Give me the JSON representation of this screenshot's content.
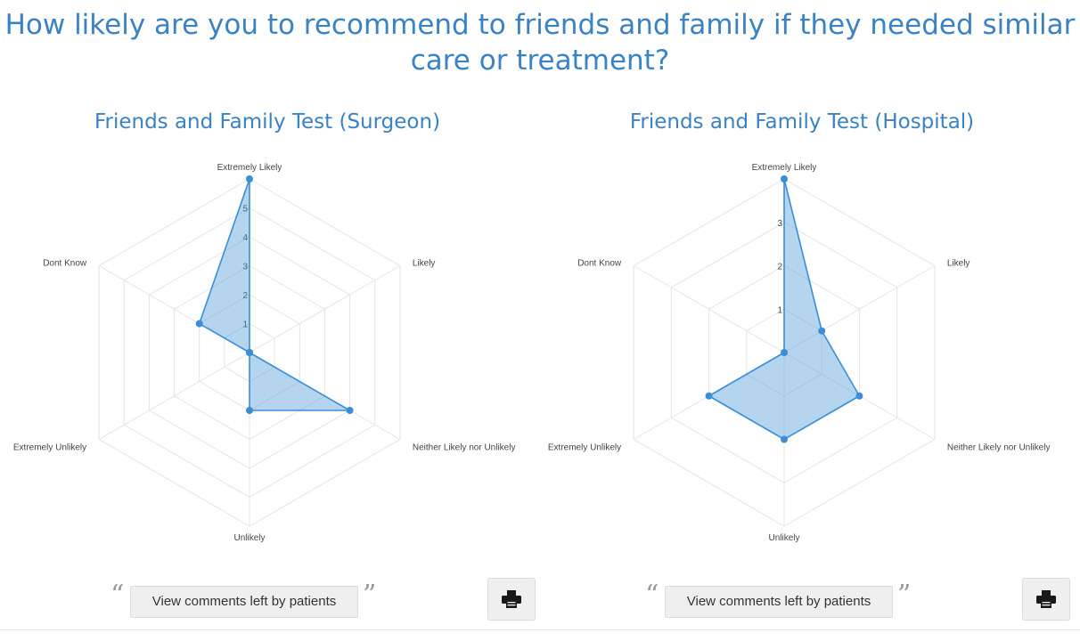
{
  "page": {
    "title": "How likely are you to recommend to friends and family if they needed similar care or treatment?"
  },
  "colors": {
    "accent": "#3a82c4",
    "series_fill": "#4f9ad6",
    "series_stroke": "#3b8ed6",
    "grid": "#e4e4e4"
  },
  "chart_data": [
    {
      "type": "radar",
      "title": "Friends and Family Test (Surgeon)",
      "categories": [
        "Extremely Likely",
        "Likely",
        "Neither Likely nor Unlikely",
        "Unlikely",
        "Extremely Unlikely",
        "Dont Know"
      ],
      "values": [
        6,
        0,
        4,
        2,
        0,
        2
      ],
      "rlim": [
        0,
        6
      ],
      "tick_labels": [
        "1",
        "2",
        "3",
        "4",
        "5"
      ],
      "grid": true
    },
    {
      "type": "radar",
      "title": "Friends and Family Test (Hospital)",
      "categories": [
        "Extremely Likely",
        "Likely",
        "Neither Likely nor Unlikely",
        "Unlikely",
        "Extremely Unlikely",
        "Dont Know"
      ],
      "values": [
        4,
        1,
        2,
        2,
        2,
        0
      ],
      "rlim": [
        0,
        4
      ],
      "tick_labels": [
        "1",
        "2",
        "3"
      ],
      "grid": true
    }
  ],
  "panels": [
    {
      "comments_label": "View comments left by patients",
      "open_quote": "“",
      "close_quote": "”",
      "print_icon": "printer-icon"
    },
    {
      "comments_label": "View comments left by patients",
      "open_quote": "“",
      "close_quote": "”",
      "print_icon": "printer-icon"
    }
  ]
}
